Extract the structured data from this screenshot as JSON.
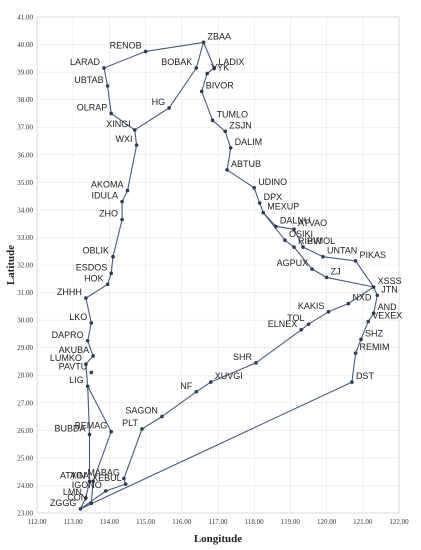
{
  "chart_data": {
    "type": "line",
    "title": "",
    "xlabel": "Longitude",
    "ylabel": "Latitude",
    "xlim": [
      112.0,
      122.0
    ],
    "ylim": [
      23.0,
      41.0
    ],
    "x_ticks": [
      "112.00",
      "113.00",
      "114.00",
      "115.00",
      "116.00",
      "117.00",
      "118.00",
      "119.00",
      "120.00",
      "121.00",
      "122.00"
    ],
    "y_ticks": [
      "23.00",
      "24.00",
      "25.00",
      "26.00",
      "27.00",
      "28.00",
      "29.00",
      "30.00",
      "31.00",
      "32.00",
      "33.00",
      "34.00",
      "35.00",
      "36.00",
      "37.00",
      "38.00",
      "39.00",
      "40.00",
      "41.00"
    ],
    "grid": true,
    "waypoints": [
      {
        "name": "ZBAA",
        "lon": 116.6,
        "lat": 40.08
      },
      {
        "name": "RENOB",
        "lon": 115.0,
        "lat": 39.75
      },
      {
        "name": "LARAD",
        "lon": 113.85,
        "lat": 39.15
      },
      {
        "name": "BOBAK",
        "lon": 116.4,
        "lat": 39.15
      },
      {
        "name": "LADIX",
        "lon": 116.9,
        "lat": 39.15
      },
      {
        "name": "VYK",
        "lon": 116.7,
        "lat": 38.95
      },
      {
        "name": "UBTAB",
        "lon": 113.95,
        "lat": 38.5
      },
      {
        "name": "BIVOR",
        "lon": 116.55,
        "lat": 38.3
      },
      {
        "name": "HG",
        "lon": 115.65,
        "lat": 37.7
      },
      {
        "name": "OLRAP",
        "lon": 114.05,
        "lat": 37.5
      },
      {
        "name": "TUMLO",
        "lon": 116.85,
        "lat": 37.25
      },
      {
        "name": "XINGI",
        "lon": 114.7,
        "lat": 36.9
      },
      {
        "name": "ZSJN",
        "lon": 117.2,
        "lat": 36.85
      },
      {
        "name": "WXI",
        "lon": 114.75,
        "lat": 36.35
      },
      {
        "name": "DALIM",
        "lon": 117.35,
        "lat": 36.25
      },
      {
        "name": "ABTUB",
        "lon": 117.25,
        "lat": 35.45
      },
      {
        "name": "UDINO",
        "lon": 118.0,
        "lat": 34.8
      },
      {
        "name": "AKOMA",
        "lon": 114.5,
        "lat": 34.7
      },
      {
        "name": "DPX",
        "lon": 118.15,
        "lat": 34.25
      },
      {
        "name": "IDULA",
        "lon": 114.35,
        "lat": 34.3
      },
      {
        "name": "MEXUP",
        "lon": 118.25,
        "lat": 33.9
      },
      {
        "name": "ZHO",
        "lon": 114.35,
        "lat": 33.65
      },
      {
        "name": "DALNU",
        "lon": 118.6,
        "lat": 33.4
      },
      {
        "name": "ATVAO",
        "lon": 119.1,
        "lat": 33.3
      },
      {
        "name": "OSIKI",
        "lon": 118.85,
        "lat": 32.9
      },
      {
        "name": "RIBVI",
        "lon": 119.1,
        "lat": 32.65
      },
      {
        "name": "PIMOL",
        "lon": 119.35,
        "lat": 32.65
      },
      {
        "name": "OBLIK",
        "lon": 114.1,
        "lat": 32.3
      },
      {
        "name": "UNTAN",
        "lon": 119.9,
        "lat": 32.3
      },
      {
        "name": "PIKAS",
        "lon": 120.8,
        "lat": 32.15
      },
      {
        "name": "AGPUX",
        "lon": 119.6,
        "lat": 31.85
      },
      {
        "name": "ESDOS",
        "lon": 114.05,
        "lat": 31.7
      },
      {
        "name": "ZJ",
        "lon": 120.0,
        "lat": 31.55
      },
      {
        "name": "XSSS",
        "lon": 121.3,
        "lat": 31.2
      },
      {
        "name": "HOK",
        "lon": 113.95,
        "lat": 31.3
      },
      {
        "name": "JTN",
        "lon": 121.4,
        "lat": 30.9
      },
      {
        "name": "ZHHH",
        "lon": 113.35,
        "lat": 30.8
      },
      {
        "name": "NXD",
        "lon": 120.6,
        "lat": 30.6
      },
      {
        "name": "KAKIS",
        "lon": 120.05,
        "lat": 30.3
      },
      {
        "name": "LKO",
        "lon": 113.5,
        "lat": 29.9
      },
      {
        "name": "TOL",
        "lon": 119.5,
        "lat": 29.85
      },
      {
        "name": "VEXEX",
        "lon": 121.15,
        "lat": 29.95
      },
      {
        "name": "AND",
        "lon": 121.3,
        "lat": 30.25
      },
      {
        "name": "ELNEX",
        "lon": 119.3,
        "lat": 29.65
      },
      {
        "name": "DAPRO",
        "lon": 113.4,
        "lat": 29.25
      },
      {
        "name": "SHZ",
        "lon": 120.95,
        "lat": 29.3
      },
      {
        "name": "AKUBA",
        "lon": 113.55,
        "lat": 28.7
      },
      {
        "name": "REMIM",
        "lon": 120.8,
        "lat": 28.8
      },
      {
        "name": "SHR",
        "lon": 118.05,
        "lat": 28.45
      },
      {
        "name": "LUMKO",
        "lon": 113.35,
        "lat": 28.4
      },
      {
        "name": "PAVTU",
        "lon": 113.5,
        "lat": 28.1
      },
      {
        "name": "XUVGI",
        "lon": 116.8,
        "lat": 27.75
      },
      {
        "name": "DST",
        "lon": 120.7,
        "lat": 27.75
      },
      {
        "name": "LIG",
        "lon": 113.4,
        "lat": 27.6
      },
      {
        "name": "NF",
        "lon": 116.4,
        "lat": 27.4
      },
      {
        "name": "SAGON",
        "lon": 115.45,
        "lat": 26.5
      },
      {
        "name": "BEMAG",
        "lon": 114.05,
        "lat": 25.95
      },
      {
        "name": "BUBDA",
        "lon": 113.45,
        "lat": 25.85
      },
      {
        "name": "PLT",
        "lon": 114.9,
        "lat": 26.05
      },
      {
        "name": "YIN",
        "lon": 113.45,
        "lat": 24.15
      },
      {
        "name": "ATAGA",
        "lon": 113.55,
        "lat": 24.15
      },
      {
        "name": "MABAG",
        "lon": 114.4,
        "lat": 24.25
      },
      {
        "name": "XEBUL",
        "lon": 114.45,
        "lat": 24.05
      },
      {
        "name": "IGONO",
        "lon": 113.9,
        "lat": 23.8
      },
      {
        "name": "LMN",
        "lon": 113.35,
        "lat": 23.55
      },
      {
        "name": "CON",
        "lon": 113.5,
        "lat": 23.35
      },
      {
        "name": "ZGGG",
        "lon": 113.2,
        "lat": 23.15
      }
    ],
    "routes": [
      [
        "ZGGG",
        "LMN",
        "YIN",
        "BUBDA",
        "LIG",
        "LUMKO",
        "AKUBA",
        "DAPRO",
        "LKO",
        "ZHHH",
        "HOK",
        "ESDOS",
        "OBLIK",
        "ZHO",
        "IDULA",
        "AKOMA",
        "WXI",
        "XINGI",
        "OLRAP",
        "UBTAB",
        "LARAD",
        "RENOB",
        "ZBAA"
      ],
      [
        "LIG",
        "BEMAG",
        "ATAGA",
        "CON",
        "ZGGG"
      ],
      [
        "ZGGG",
        "IGONO",
        "XEBUL",
        "MABAG",
        "PLT",
        "SAGON",
        "NF",
        "XUVGI",
        "SHR",
        "ELNEX",
        "TOL",
        "KAKIS",
        "NXD",
        "XSSS"
      ],
      [
        "ZGGG",
        "DST",
        "REMIM",
        "SHZ",
        "VEXEX",
        "AND",
        "JTN",
        "XSSS"
      ],
      [
        "XSSS",
        "PIKAS",
        "UNTAN",
        "PIMOL",
        "ATVAO",
        "DALNU",
        "MEXUP",
        "DPX",
        "UDINO",
        "ABTUB",
        "DALIM",
        "ZSJN",
        "TUMLO",
        "BIVOR",
        "VYK",
        "LADIX",
        "ZBAA"
      ],
      [
        "XSSS",
        "ZJ",
        "AGPUX",
        "RIBVI",
        "OSIKI",
        "MEXUP"
      ],
      [
        "XINGI",
        "HG",
        "BOBAK",
        "ZBAA"
      ]
    ]
  }
}
